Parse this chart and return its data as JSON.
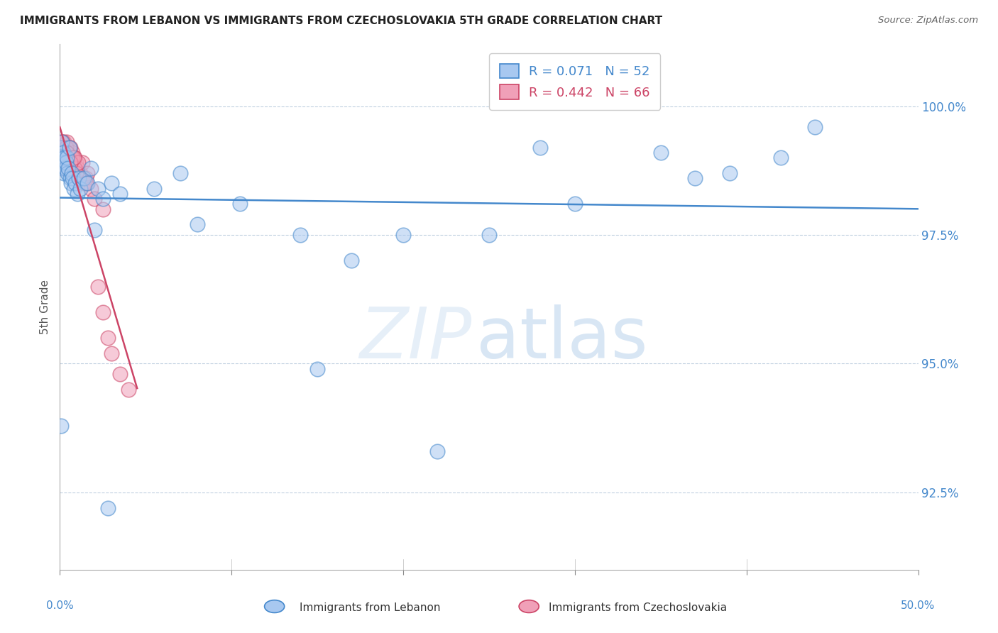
{
  "title": "IMMIGRANTS FROM LEBANON VS IMMIGRANTS FROM CZECHOSLOVAKIA 5TH GRADE CORRELATION CHART",
  "source": "Source: ZipAtlas.com",
  "ylabel": "5th Grade",
  "yticks": [
    92.5,
    95.0,
    97.5,
    100.0
  ],
  "ytick_labels": [
    "92.5%",
    "95.0%",
    "97.5%",
    "100.0%"
  ],
  "xlim": [
    0.0,
    50.0
  ],
  "ylim": [
    91.0,
    101.2
  ],
  "color_lebanon": "#A8C8F0",
  "color_czech": "#F0A0B8",
  "color_line_lebanon": "#4488CC",
  "color_line_czech": "#CC4466",
  "lebanon_x": [
    0.05,
    0.08,
    0.1,
    0.12,
    0.15,
    0.18,
    0.2,
    0.22,
    0.25,
    0.28,
    0.3,
    0.35,
    0.4,
    0.45,
    0.5,
    0.55,
    0.6,
    0.65,
    0.7,
    0.75,
    0.8,
    0.9,
    1.0,
    1.1,
    1.2,
    1.4,
    1.6,
    1.8,
    2.0,
    2.2,
    2.5,
    3.0,
    3.5,
    5.5,
    7.0,
    8.0,
    10.5,
    14.0,
    15.0,
    17.0,
    20.0,
    22.0,
    25.0,
    28.0,
    30.0,
    35.0,
    37.0,
    39.0,
    42.0,
    44.0,
    0.06,
    2.8
  ],
  "lebanon_y": [
    99.2,
    99.0,
    98.9,
    99.3,
    98.8,
    99.0,
    99.1,
    98.7,
    98.9,
    99.0,
    98.8,
    98.9,
    99.0,
    98.7,
    98.8,
    99.2,
    98.6,
    98.5,
    98.7,
    98.6,
    98.4,
    98.5,
    98.3,
    98.6,
    98.4,
    98.6,
    98.5,
    98.8,
    97.6,
    98.4,
    98.2,
    98.5,
    98.3,
    98.4,
    98.7,
    97.7,
    98.1,
    97.5,
    94.9,
    97.0,
    97.5,
    93.3,
    97.5,
    99.2,
    98.1,
    99.1,
    98.6,
    98.7,
    99.0,
    99.6,
    93.8,
    92.2
  ],
  "czech_x": [
    0.04,
    0.06,
    0.08,
    0.1,
    0.12,
    0.14,
    0.16,
    0.18,
    0.2,
    0.22,
    0.24,
    0.26,
    0.28,
    0.3,
    0.32,
    0.34,
    0.36,
    0.38,
    0.4,
    0.42,
    0.44,
    0.46,
    0.48,
    0.5,
    0.52,
    0.55,
    0.58,
    0.6,
    0.65,
    0.7,
    0.75,
    0.8,
    0.85,
    0.9,
    0.95,
    1.0,
    1.1,
    1.2,
    1.3,
    1.4,
    1.5,
    1.6,
    1.8,
    2.0,
    2.2,
    2.5,
    2.8,
    3.0,
    3.5,
    4.0,
    0.15,
    0.25,
    0.35,
    0.45,
    0.55,
    0.65,
    0.75,
    0.85,
    0.95,
    1.05,
    1.5,
    2.5,
    0.2,
    0.4,
    0.6,
    0.8
  ],
  "czech_y": [
    99.0,
    99.1,
    99.2,
    98.9,
    99.3,
    99.0,
    99.1,
    98.8,
    99.2,
    99.0,
    99.3,
    99.1,
    99.0,
    98.9,
    99.2,
    99.0,
    99.1,
    98.8,
    99.3,
    99.0,
    99.1,
    99.2,
    98.9,
    99.0,
    99.1,
    99.0,
    98.8,
    99.2,
    99.0,
    98.9,
    99.1,
    98.8,
    99.0,
    98.7,
    98.9,
    98.8,
    98.6,
    98.7,
    98.9,
    98.5,
    98.6,
    98.7,
    98.4,
    98.2,
    96.5,
    96.0,
    95.5,
    95.2,
    94.8,
    94.5,
    99.3,
    99.1,
    99.2,
    99.0,
    99.2,
    98.9,
    99.0,
    98.8,
    98.7,
    98.9,
    98.5,
    98.0,
    99.0,
    99.1,
    98.9,
    99.0
  ],
  "watermark_zip": "ZIP",
  "watermark_atlas": "atlas"
}
